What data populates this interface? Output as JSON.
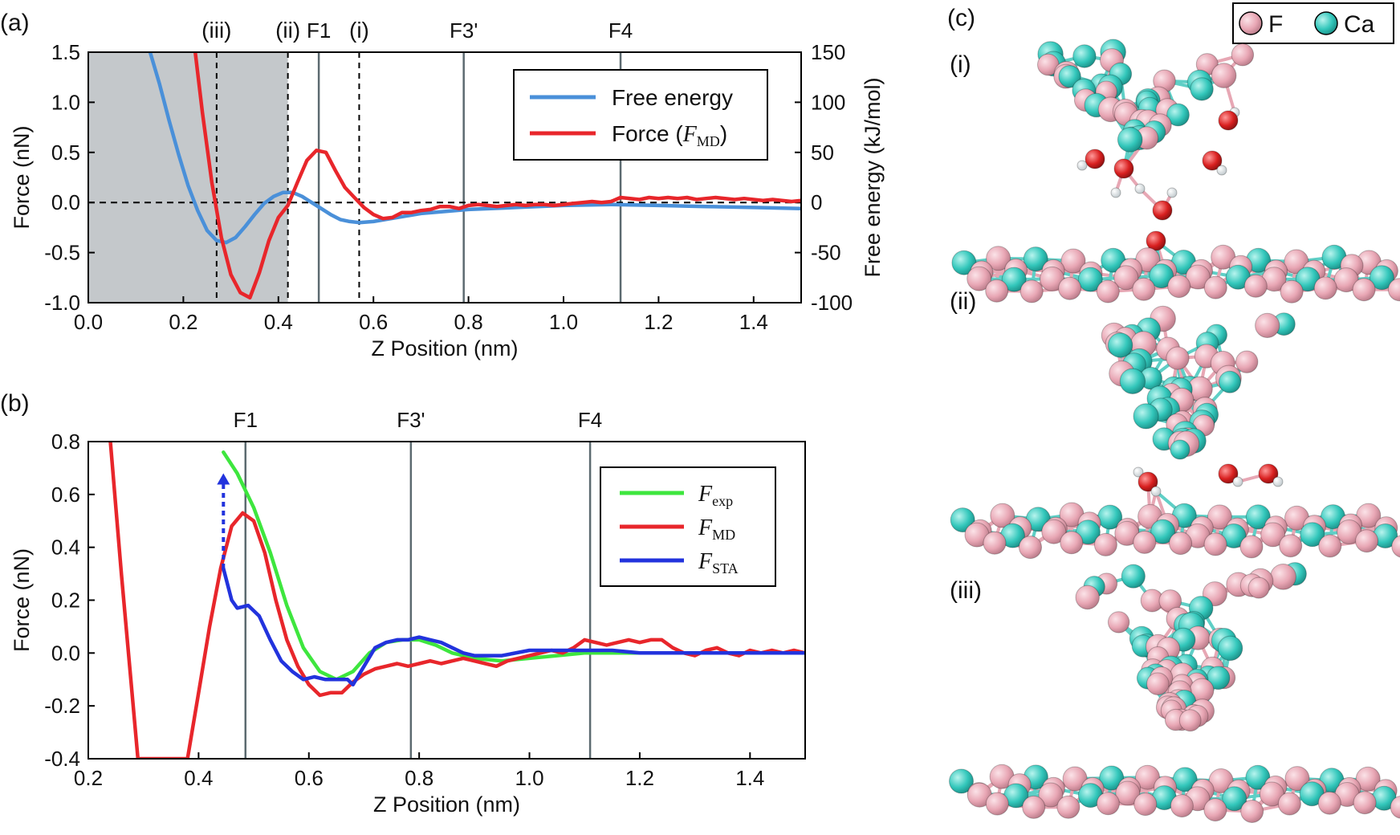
{
  "panel_labels": {
    "a": "(a)",
    "b": "(b)",
    "c": "(c)"
  },
  "chart_data": [
    {
      "type": "line",
      "panel": "(a)",
      "xlabel": "Z Position (nm)",
      "ylabel": "Force (nN)",
      "y2label": "Free energy (kJ/mol)",
      "xlim": [
        0.0,
        1.5
      ],
      "ylim": [
        -1.0,
        1.5
      ],
      "y2lim": [
        -100,
        150
      ],
      "xticks": [
        "0.0",
        "0.2",
        "0.4",
        "0.6",
        "0.8",
        "1.0",
        "1.2",
        "1.4"
      ],
      "yticks": [
        "-1.0",
        "-0.5",
        "0.0",
        "0.5",
        "1.0",
        "1.5"
      ],
      "y2ticks": [
        "-100",
        "-50",
        "0",
        "50",
        "100",
        "150"
      ],
      "shaded_region": [
        0.0,
        0.42
      ],
      "dashed_markers": [
        {
          "label": "(iii)",
          "x": 0.27
        },
        {
          "label": "(ii)",
          "x": 0.42
        },
        {
          "label": "(i)",
          "x": 0.57
        }
      ],
      "solid_markers": [
        {
          "label": "F1",
          "x": 0.485
        },
        {
          "label": "F3'",
          "x": 0.79
        },
        {
          "label": "F4",
          "x": 1.12
        }
      ],
      "legend": {
        "position": "top-right",
        "entries": [
          {
            "label": "Free energy",
            "color": "#4a90d9"
          },
          {
            "label_italic": "F",
            "label_sub": "MD",
            "label_prefix": "Force (",
            "label_suffix": ")",
            "color": "#e8262b"
          }
        ]
      },
      "series": [
        {
          "name": "Free energy",
          "axis": "y2",
          "color": "#4a90d9",
          "x": [
            0.13,
            0.15,
            0.17,
            0.19,
            0.21,
            0.23,
            0.25,
            0.27,
            0.29,
            0.31,
            0.33,
            0.35,
            0.37,
            0.39,
            0.41,
            0.43,
            0.45,
            0.47,
            0.49,
            0.51,
            0.53,
            0.55,
            0.57,
            0.6,
            0.65,
            0.7,
            0.8,
            0.9,
            1.0,
            1.1,
            1.2,
            1.3,
            1.4,
            1.5
          ],
          "y": [
            150,
            118,
            82,
            48,
            17,
            -8,
            -28,
            -38,
            -40,
            -35,
            -24,
            -12,
            -1,
            6,
            10,
            10,
            6,
            0,
            -6,
            -12,
            -17,
            -19,
            -20,
            -19,
            -15,
            -11,
            -7,
            -5,
            -3,
            -2,
            -3,
            -4,
            -5,
            -6
          ]
        },
        {
          "name": "Force (FMD)",
          "axis": "y",
          "color": "#e8262b",
          "x": [
            0.225,
            0.24,
            0.26,
            0.28,
            0.3,
            0.32,
            0.34,
            0.36,
            0.38,
            0.4,
            0.42,
            0.44,
            0.46,
            0.48,
            0.5,
            0.52,
            0.54,
            0.56,
            0.58,
            0.6,
            0.62,
            0.64,
            0.66,
            0.68,
            0.7,
            0.72,
            0.74,
            0.76,
            0.78,
            0.8,
            0.82,
            0.84,
            0.86,
            0.88,
            0.9,
            0.92,
            0.94,
            0.96,
            0.98,
            1.0,
            1.02,
            1.04,
            1.06,
            1.08,
            1.1,
            1.12,
            1.14,
            1.16,
            1.18,
            1.2,
            1.22,
            1.24,
            1.26,
            1.28,
            1.3,
            1.32,
            1.34,
            1.36,
            1.38,
            1.4,
            1.42,
            1.44,
            1.46,
            1.48,
            1.5
          ],
          "y": [
            1.5,
            0.9,
            0.2,
            -0.35,
            -0.72,
            -0.9,
            -0.95,
            -0.7,
            -0.38,
            -0.15,
            -0.03,
            0.2,
            0.42,
            0.52,
            0.5,
            0.32,
            0.15,
            0.05,
            -0.05,
            -0.12,
            -0.16,
            -0.15,
            -0.1,
            -0.1,
            -0.08,
            -0.07,
            -0.04,
            -0.04,
            -0.06,
            -0.03,
            -0.02,
            -0.03,
            -0.04,
            -0.03,
            -0.02,
            -0.03,
            -0.02,
            -0.02,
            -0.03,
            -0.02,
            -0.01,
            0.0,
            0.01,
            0.0,
            0.01,
            0.05,
            0.04,
            0.03,
            0.05,
            0.04,
            0.05,
            0.04,
            0.05,
            0.03,
            0.04,
            0.05,
            0.04,
            0.03,
            0.04,
            0.03,
            0.02,
            0.03,
            0.02,
            0.01,
            0.02
          ]
        }
      ]
    },
    {
      "type": "line",
      "panel": "(b)",
      "xlabel": "Z Position (nm)",
      "ylabel": "Force (nN)",
      "xlim": [
        0.2,
        1.5
      ],
      "ylim": [
        -0.4,
        0.8
      ],
      "xticks": [
        "0.2",
        "0.4",
        "0.6",
        "0.8",
        "1.0",
        "1.2",
        "1.4"
      ],
      "yticks": [
        "-0.4",
        "-0.2",
        "0.0",
        "0.2",
        "0.4",
        "0.6",
        "0.8"
      ],
      "solid_markers": [
        {
          "label": "F1",
          "x": 0.485
        },
        {
          "label": "F3'",
          "x": 0.785
        },
        {
          "label": "F4",
          "x": 1.11
        }
      ],
      "arrow": {
        "x": 0.445,
        "from": 0.32,
        "to": 0.68,
        "color": "#2233dd"
      },
      "legend": {
        "position": "top-right",
        "entries": [
          {
            "label_italic": "F",
            "label_sub": "exp",
            "color": "#3ee63e"
          },
          {
            "label_italic": "F",
            "label_sub": "MD",
            "color": "#e8262b"
          },
          {
            "label_italic": "F",
            "label_sub": "STA",
            "color": "#2233dd"
          }
        ]
      },
      "series": [
        {
          "name": "Fexp",
          "color": "#3ee63e",
          "x": [
            0.445,
            0.47,
            0.5,
            0.53,
            0.56,
            0.59,
            0.62,
            0.65,
            0.68,
            0.71,
            0.74,
            0.77,
            0.8,
            0.83,
            0.86,
            0.9,
            0.95,
            1.0,
            1.05,
            1.1,
            1.2,
            1.3,
            1.4,
            1.5
          ],
          "y": [
            0.76,
            0.68,
            0.55,
            0.38,
            0.18,
            0.02,
            -0.07,
            -0.1,
            -0.07,
            0.0,
            0.04,
            0.05,
            0.05,
            0.03,
            0.0,
            -0.02,
            -0.03,
            -0.02,
            -0.01,
            0.0,
            0.0,
            0.0,
            0.0,
            0.0
          ]
        },
        {
          "name": "FMD",
          "color": "#e8262b",
          "x": [
            0.24,
            0.26,
            0.29,
            0.38,
            0.4,
            0.42,
            0.44,
            0.46,
            0.48,
            0.5,
            0.52,
            0.54,
            0.56,
            0.58,
            0.6,
            0.62,
            0.64,
            0.66,
            0.68,
            0.7,
            0.72,
            0.74,
            0.76,
            0.78,
            0.8,
            0.82,
            0.84,
            0.86,
            0.88,
            0.9,
            0.92,
            0.94,
            0.96,
            0.98,
            1.0,
            1.02,
            1.04,
            1.06,
            1.08,
            1.1,
            1.12,
            1.14,
            1.16,
            1.18,
            1.2,
            1.22,
            1.24,
            1.26,
            1.28,
            1.3,
            1.32,
            1.34,
            1.36,
            1.38,
            1.4,
            1.42,
            1.44,
            1.46,
            1.48,
            1.5
          ],
          "y": [
            0.8,
            0.3,
            -0.4,
            -0.4,
            -0.15,
            0.1,
            0.32,
            0.48,
            0.53,
            0.5,
            0.38,
            0.2,
            0.05,
            -0.05,
            -0.12,
            -0.16,
            -0.15,
            -0.15,
            -0.11,
            -0.08,
            -0.06,
            -0.05,
            -0.04,
            -0.05,
            -0.04,
            -0.03,
            -0.04,
            -0.03,
            -0.02,
            -0.03,
            -0.04,
            -0.05,
            -0.03,
            -0.02,
            -0.01,
            0.0,
            0.01,
            0.0,
            0.02,
            0.05,
            0.04,
            0.03,
            0.04,
            0.05,
            0.04,
            0.05,
            0.05,
            0.02,
            0.0,
            -0.01,
            0.01,
            0.02,
            0.0,
            -0.01,
            0.01,
            0.0,
            0.01,
            0.0,
            0.01,
            0.0
          ]
        },
        {
          "name": "FSTA",
          "color": "#2233dd",
          "x": [
            0.445,
            0.46,
            0.47,
            0.49,
            0.51,
            0.53,
            0.55,
            0.57,
            0.59,
            0.61,
            0.63,
            0.65,
            0.67,
            0.68,
            0.7,
            0.72,
            0.74,
            0.76,
            0.78,
            0.8,
            0.82,
            0.84,
            0.86,
            0.88,
            0.9,
            0.95,
            1.0,
            1.05,
            1.1,
            1.15,
            1.2,
            1.3,
            1.4,
            1.5
          ],
          "y": [
            0.32,
            0.2,
            0.17,
            0.18,
            0.14,
            0.05,
            -0.03,
            -0.07,
            -0.1,
            -0.09,
            -0.1,
            -0.1,
            -0.1,
            -0.12,
            -0.05,
            0.02,
            0.04,
            0.05,
            0.05,
            0.06,
            0.05,
            0.04,
            0.02,
            0.0,
            -0.01,
            -0.01,
            0.01,
            0.01,
            0.01,
            0.01,
            0.0,
            0.0,
            0.0,
            0.0
          ]
        }
      ]
    }
  ],
  "structure_panel": {
    "legend": [
      {
        "label": "F",
        "color": "#f0aebb"
      },
      {
        "label": "Ca",
        "color": "#3ecfc4"
      }
    ],
    "views": [
      {
        "label": "(i)"
      },
      {
        "label": "(ii)"
      },
      {
        "label": "(iii)"
      }
    ]
  }
}
